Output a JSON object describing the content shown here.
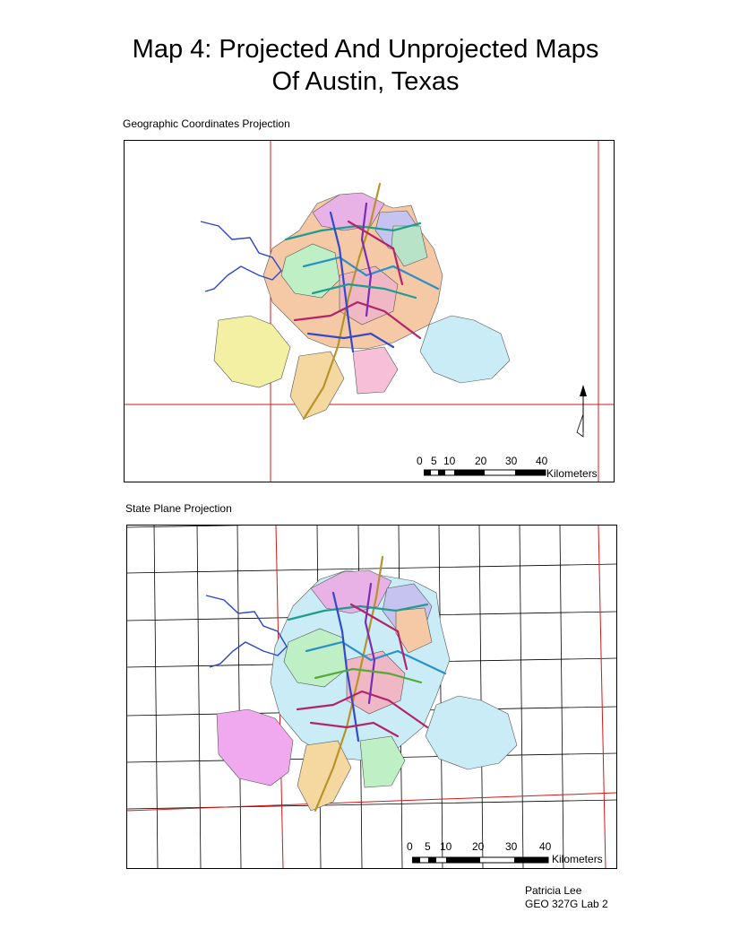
{
  "title": {
    "line1": "Map 4: Projected And Unprojected Maps",
    "line2": "Of Austin, Texas"
  },
  "maps": [
    {
      "caption": "Geographic Coordinates Projection",
      "scale": {
        "ticks": [
          "0",
          "5",
          "10",
          "20",
          "30",
          "40"
        ],
        "unit": "Kilometers"
      }
    },
    {
      "caption": "State Plane Projection",
      "scale": {
        "ticks": [
          "0",
          "5",
          "10",
          "20",
          "30",
          "40"
        ],
        "unit": "Kilometers"
      }
    }
  ],
  "author": {
    "name": "Patricia Lee",
    "course": "GEO 327G Lab 2"
  },
  "colors": {
    "graticule": "#d11a1a",
    "grid": "#000000",
    "river": "#2b47c9",
    "highway": "#b8932a"
  }
}
